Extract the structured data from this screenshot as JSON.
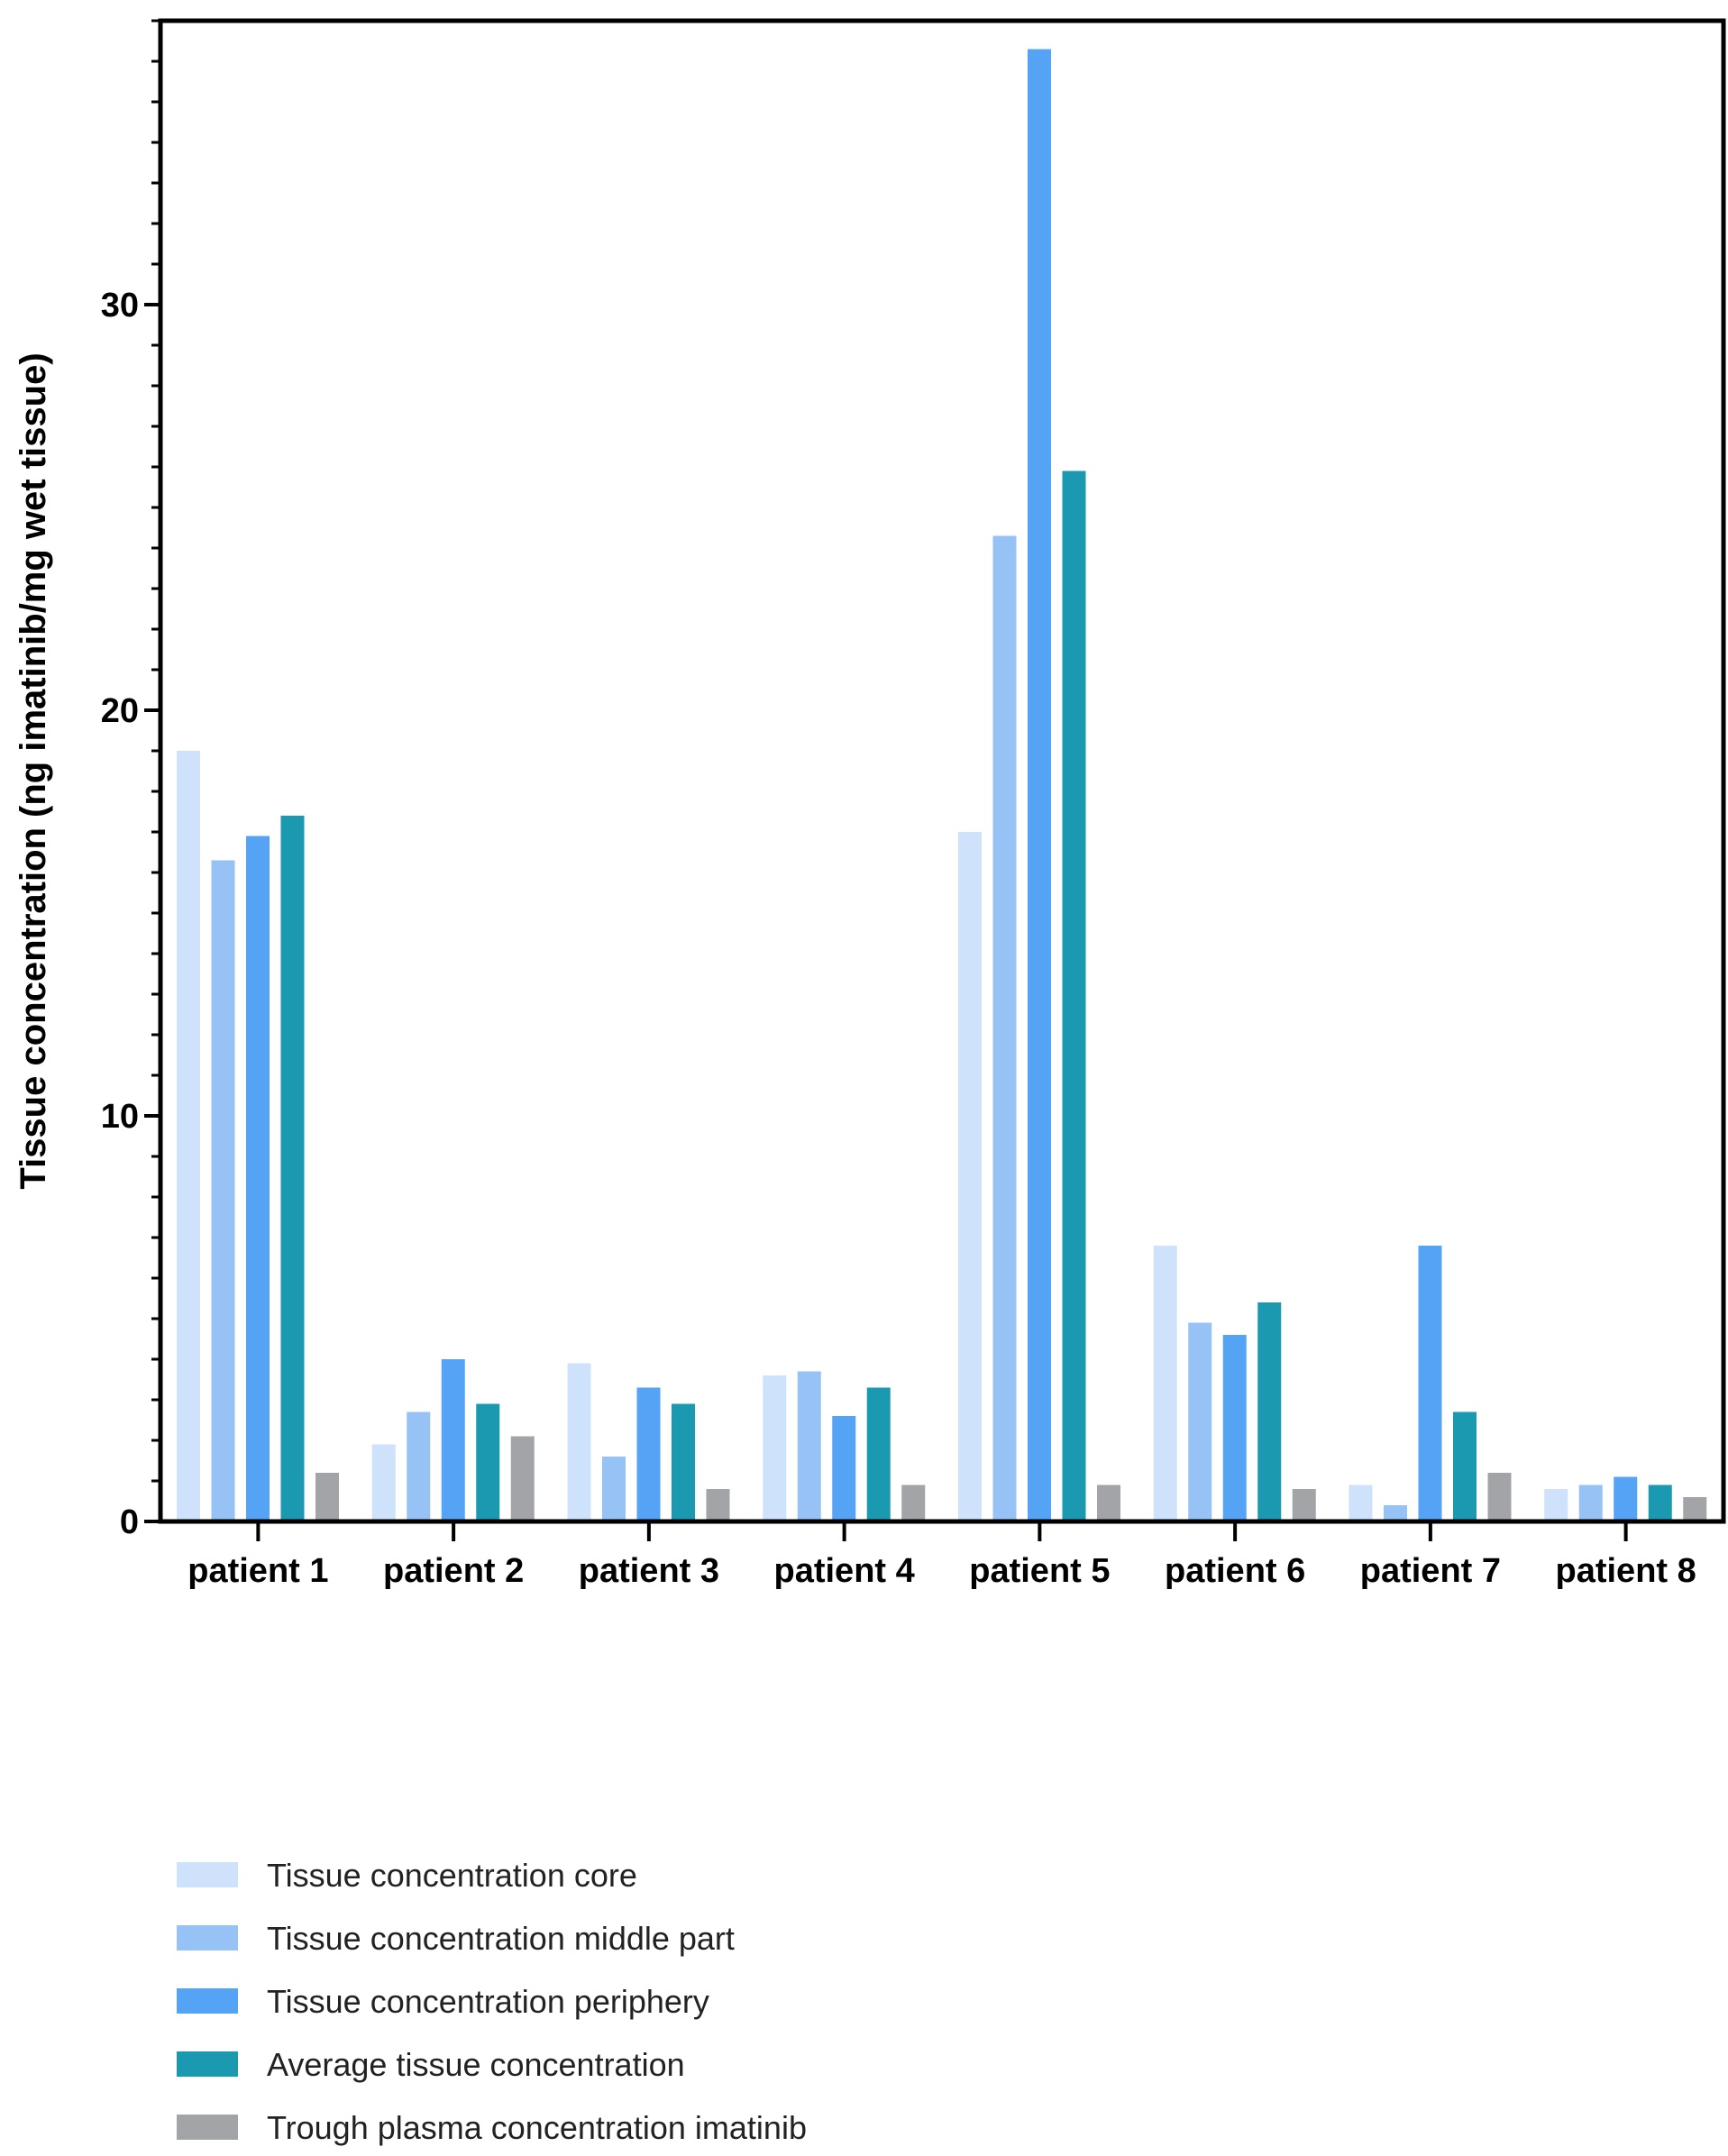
{
  "chart_data": {
    "type": "bar",
    "title": "",
    "xlabel": "",
    "ylabel": "Tissue concentration (ng imatinib/mg wet tissue)",
    "ylim": [
      0,
      37
    ],
    "yticks": [
      0,
      10,
      20,
      30
    ],
    "grid": false,
    "legend_position": "bottom-left",
    "categories": [
      "patient 1",
      "patient 2",
      "patient 3",
      "patient 4",
      "patient 5",
      "patient 6",
      "patient 7",
      "patient 8"
    ],
    "series": [
      {
        "name": "Tissue concentration core",
        "color": "#cfe2fb",
        "values": [
          19.0,
          1.9,
          3.9,
          3.6,
          17.0,
          6.8,
          0.9,
          0.8
        ]
      },
      {
        "name": "Tissue concentration middle part",
        "color": "#96c2f5",
        "values": [
          16.3,
          2.7,
          1.6,
          3.7,
          24.3,
          4.9,
          0.4,
          0.9
        ]
      },
      {
        "name": "Tissue concentration periphery",
        "color": "#55a3f5",
        "values": [
          16.9,
          4.0,
          3.3,
          2.6,
          36.3,
          4.6,
          6.8,
          1.1
        ]
      },
      {
        "name": "Average tissue concentration",
        "color": "#1a99b0",
        "values": [
          17.4,
          2.9,
          2.9,
          3.3,
          25.9,
          5.4,
          2.7,
          0.9
        ]
      },
      {
        "name": "Trough plasma concentration imatinib",
        "color": "#a2a4a8",
        "values": [
          1.2,
          2.1,
          0.8,
          0.9,
          0.9,
          0.8,
          1.2,
          0.6
        ]
      }
    ]
  }
}
